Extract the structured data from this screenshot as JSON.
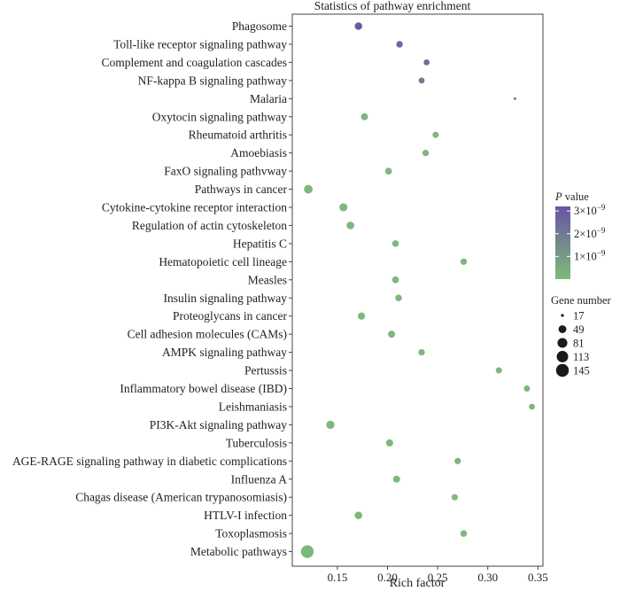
{
  "chart_data": {
    "type": "scatter",
    "title": "Statistics of pathway enrichment",
    "xlabel": "Rich factor",
    "ylabel": "",
    "xlim": [
      0.105,
      0.355
    ],
    "xticks": [
      0.15,
      0.2,
      0.25,
      0.3,
      0.35
    ],
    "xtick_labels": [
      "0.15",
      "0.20",
      "0.25",
      "0.30",
      "0.35"
    ],
    "categories": [
      "Phagosome",
      "Toll-like receptor signaling pathway",
      "Complement and coagulation cascades",
      "NF-kappa B signaling pathway",
      "Malaria",
      "Oxytocin signaling pathway",
      "Rheumatoid arthritis",
      "Amoebiasis",
      "FaxO signaling pathvway",
      "Pathways in cancer",
      "Cytokine-cytokine receptor interaction",
      "Regulation of actin cytoskeleton",
      "Hepatitis C",
      "Hematopoietic cell lineage",
      "Measles",
      "Insulin signaling pathway",
      "Proteoglycans in cancer",
      "Cell adhesion molecules (CAMs)",
      "AMPK signaling pathway",
      "Pertussis",
      "Inflammatory bowel disease (IBD)",
      "Leishmaniasis",
      "PI3K-Akt signaling pathway",
      "Tuberculosis",
      "AGE-RAGE signaling pathway in diabetic complications",
      "Influenza A",
      "Chagas disease (American trypanosomiasis)",
      "HTLV-I infection",
      "Toxoplasmosis",
      "Metabolic pathways"
    ],
    "rich_factor": [
      0.171,
      0.212,
      0.239,
      0.234,
      0.327,
      0.177,
      0.248,
      0.238,
      0.201,
      0.121,
      0.156,
      0.163,
      0.208,
      0.276,
      0.208,
      0.211,
      0.174,
      0.204,
      0.234,
      0.311,
      0.339,
      0.344,
      0.143,
      0.202,
      0.27,
      0.209,
      0.267,
      0.171,
      0.276,
      0.12
    ],
    "gene_number": [
      45,
      35,
      30,
      30,
      17,
      40,
      32,
      34,
      38,
      62,
      52,
      48,
      36,
      34,
      38,
      36,
      42,
      40,
      34,
      32,
      31,
      30,
      55,
      42,
      33,
      40,
      33,
      46,
      36,
      145
    ],
    "p_value": [
      3e-09,
      2.6e-09,
      2.3e-09,
      2e-09,
      1.6e-09,
      1e-10,
      1e-10,
      1e-10,
      1e-10,
      1e-10,
      1e-10,
      1e-10,
      1e-10,
      1e-10,
      1e-10,
      1e-10,
      1e-10,
      1e-10,
      1e-10,
      1e-10,
      1e-10,
      1e-10,
      1e-10,
      1e-10,
      1e-10,
      1e-10,
      1e-10,
      1e-10,
      1e-10,
      1e-10
    ],
    "color_legend": {
      "title_italic": "P",
      "title_rest": " value",
      "ticks": [
        {
          "value": 3e-09,
          "mantissa": "3×10",
          "exp": "−9"
        },
        {
          "value": 2e-09,
          "mantissa": "2×10",
          "exp": "−9"
        },
        {
          "value": 1e-09,
          "mantissa": "1×10",
          "exp": "−9"
        }
      ],
      "range": [
        0,
        3.2e-09
      ],
      "low_color": "#7dbb7a",
      "high_color": "#6a53a3"
    },
    "size_legend": {
      "title": "Gene number",
      "values": [
        17,
        49,
        81,
        113,
        145
      ]
    },
    "grid": false
  }
}
